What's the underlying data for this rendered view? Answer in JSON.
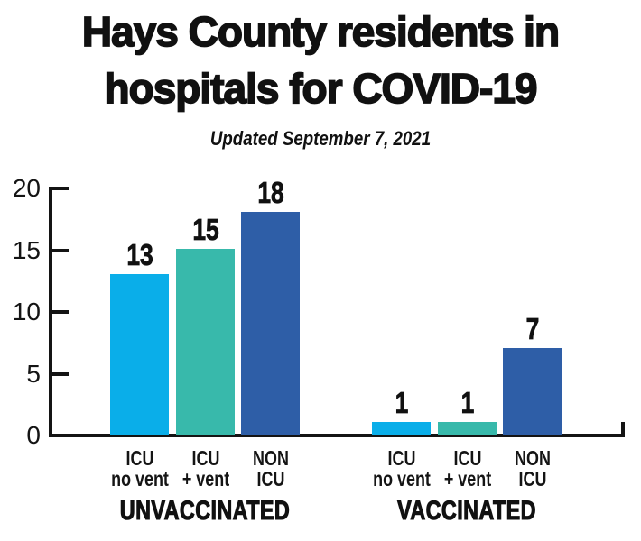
{
  "chart_data": {
    "type": "bar",
    "title": "Hays County residents in hospitals for COVID-19",
    "title_lines": [
      "Hays County residents in",
      "hospitals for COVID-19"
    ],
    "subtitle": "Updated September 7, 2021",
    "xlabel": "",
    "ylabel": "",
    "ylim": [
      0,
      20
    ],
    "yticks": [
      0,
      5,
      10,
      15,
      20
    ],
    "grid": false,
    "legend": "none",
    "categories": [
      "ICU no vent",
      "ICU + vent",
      "NON ICU"
    ],
    "category_label_lines": [
      [
        "ICU",
        "no vent"
      ],
      [
        "ICU",
        "+ vent"
      ],
      [
        "NON",
        "ICU"
      ]
    ],
    "bar_colors": [
      "#0aaee9",
      "#38b9ab",
      "#2e5ea7"
    ],
    "groups": [
      {
        "label": "UNVACCINATED",
        "values": [
          13,
          15,
          18
        ]
      },
      {
        "label": "VACCINATED",
        "values": [
          1,
          1,
          7
        ]
      }
    ],
    "colors": {
      "cyan": "#0aaee9",
      "teal": "#38b9ab",
      "dark_blue": "#2e5ea7",
      "text": "#111111",
      "axis": "#141414",
      "background": "#ffffff"
    }
  }
}
